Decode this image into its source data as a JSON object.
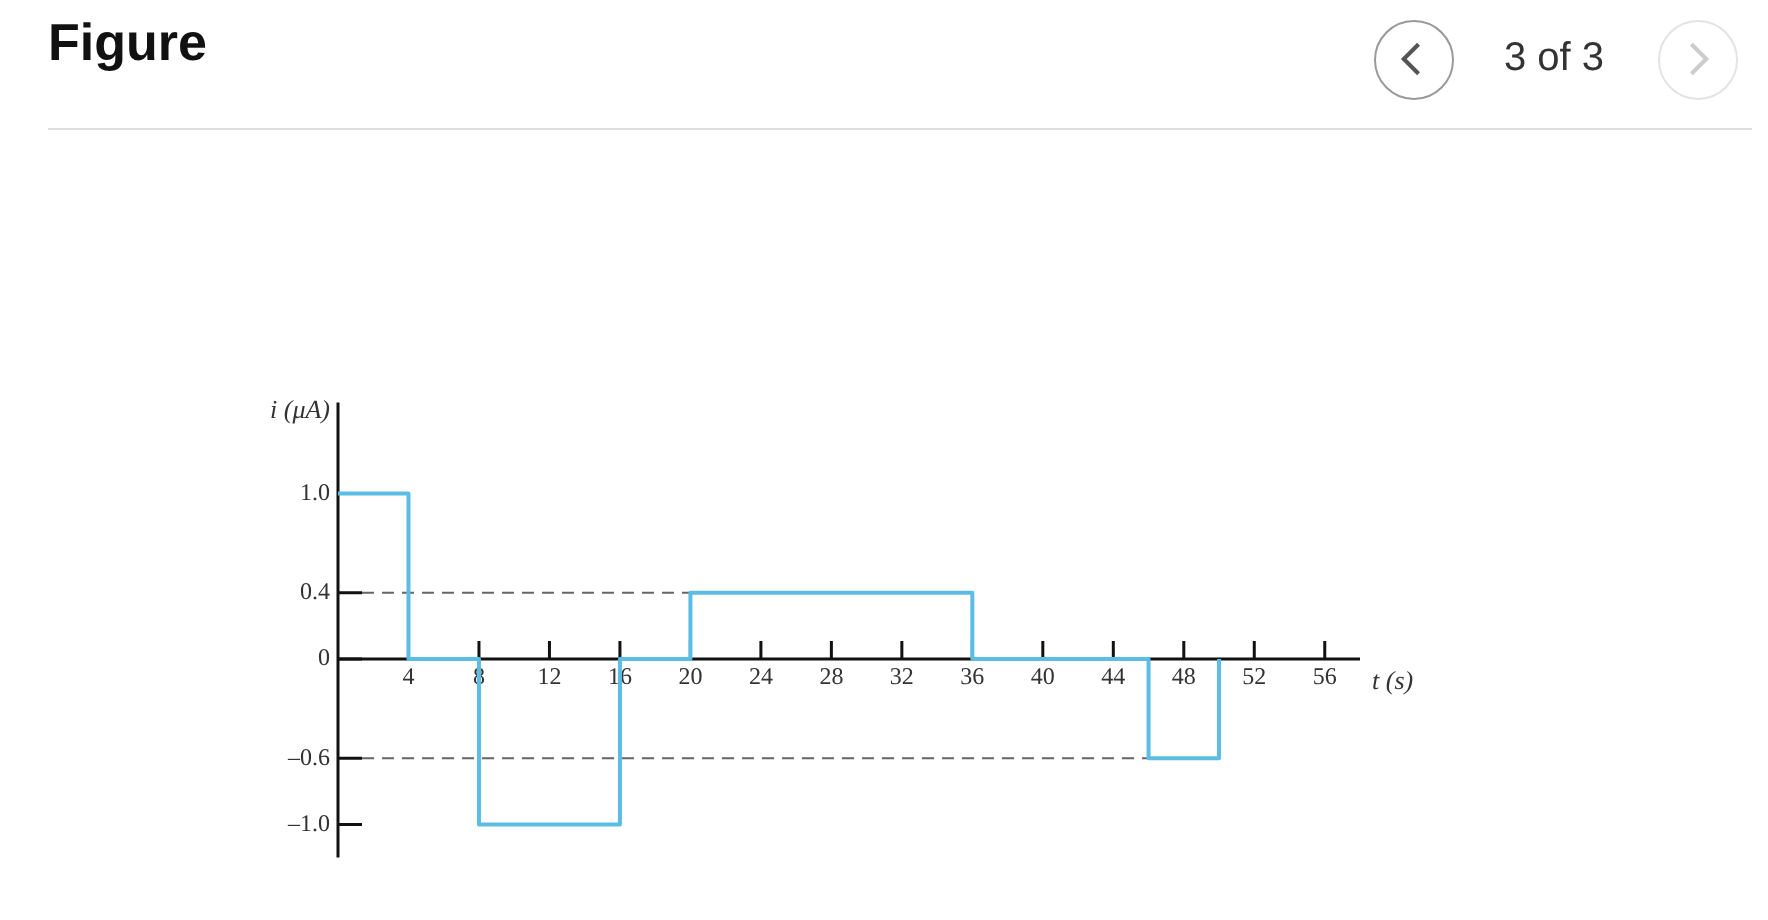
{
  "chart_data": {
    "type": "step",
    "title": "Figure",
    "xlabel": "t (s)",
    "ylabel": "i (μA)",
    "annotations": [
      "3 of 3"
    ],
    "x": [
      0,
      4,
      8,
      16,
      20,
      36,
      46,
      50
    ],
    "series": [
      {
        "color": "#5bbde3",
        "values": [
          1.0,
          0,
          -1.0,
          0,
          0.4,
          0,
          -0.6,
          0
        ]
      }
    ],
    "xlim": [
      0,
      58
    ],
    "xticks": [
      4,
      8,
      12,
      16,
      20,
      24,
      28,
      32,
      36,
      40,
      44,
      48,
      52,
      56
    ],
    "ylim": [
      -1.2,
      1.55
    ],
    "yticks": [
      {
        "value": -1.0,
        "label": "–1.0"
      },
      {
        "value": -0.6,
        "label": "–0.6"
      },
      0,
      {
        "value": 0.4,
        "label": "0.4"
      },
      {
        "value": 1.0,
        "label": "1.0"
      }
    ],
    "ref_lines": [
      {
        "axis": "y",
        "value": 0.4,
        "color": "#666666",
        "line_style": "dashed"
      },
      {
        "axis": "y",
        "value": -0.6,
        "color": "#666666",
        "line_style": "dashed"
      }
    ],
    "grid": false,
    "legend": false,
    "marker": "none",
    "line_style": "solid"
  }
}
